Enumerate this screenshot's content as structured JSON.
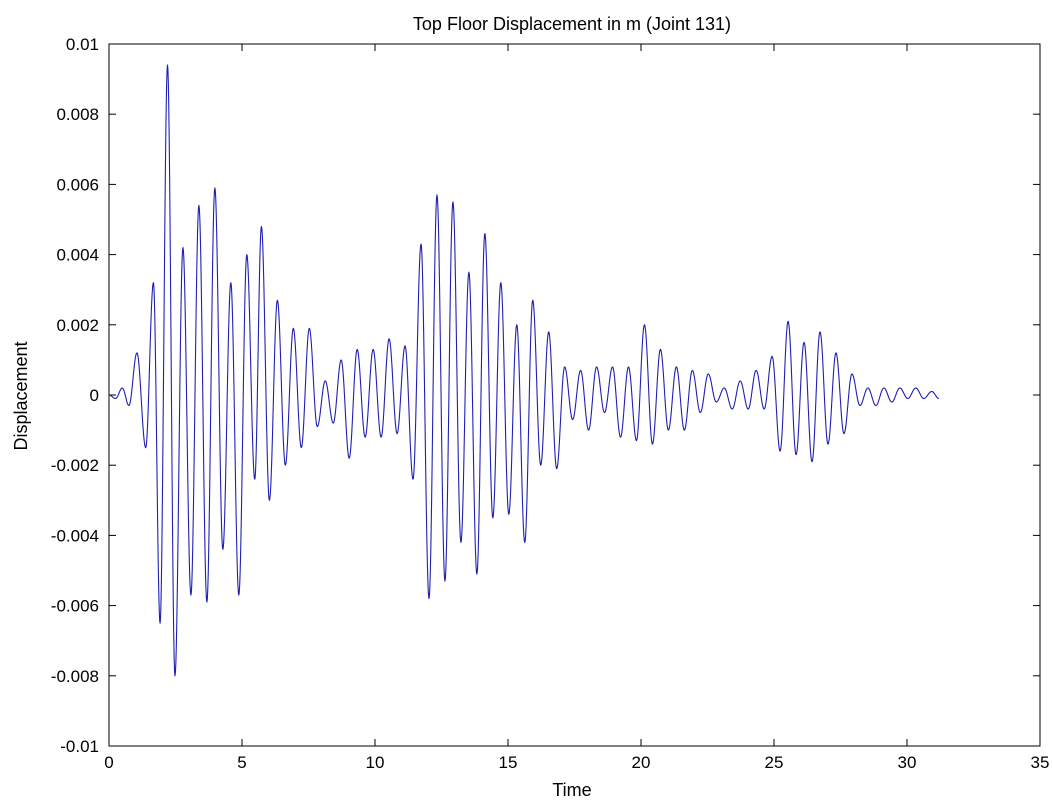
{
  "chart_data": {
    "type": "line",
    "title": "Top Floor Displacement in m (Joint 131)",
    "xlabel": "Time",
    "ylabel": "Displacement",
    "xlim": [
      0,
      35
    ],
    "ylim": [
      -0.01,
      0.01
    ],
    "x_ticks": [
      0,
      5,
      10,
      15,
      20,
      25,
      30,
      35
    ],
    "x_tick_labels": [
      "0",
      "5",
      "10",
      "15",
      "20",
      "25",
      "30",
      "35"
    ],
    "y_ticks": [
      -0.01,
      -0.008,
      -0.006,
      -0.004,
      -0.002,
      0,
      0.002,
      0.004,
      0.006,
      0.008,
      0.01
    ],
    "y_tick_labels": [
      "-0.01",
      "-0.008",
      "-0.006",
      "-0.004",
      "-0.002",
      "0",
      "0.002",
      "0.004",
      "0.006",
      "0.008",
      "0.01"
    ],
    "grid": false,
    "line_color": "#1f1fb4",
    "peaks": {
      "name": "",
      "x": [
        0.0,
        0.25,
        0.5,
        0.75,
        1.05,
        1.38,
        1.67,
        1.92,
        2.2,
        2.48,
        2.78,
        3.08,
        3.38,
        3.68,
        3.98,
        4.28,
        4.58,
        4.88,
        5.18,
        5.48,
        5.73,
        6.03,
        6.33,
        6.63,
        6.93,
        7.23,
        7.53,
        7.83,
        8.13,
        8.43,
        8.73,
        9.03,
        9.33,
        9.63,
        9.93,
        10.23,
        10.53,
        10.83,
        11.13,
        11.43,
        11.73,
        12.03,
        12.33,
        12.63,
        12.93,
        13.23,
        13.53,
        13.83,
        14.13,
        14.43,
        14.73,
        15.03,
        15.33,
        15.63,
        15.93,
        16.23,
        16.53,
        16.83,
        17.13,
        17.43,
        17.73,
        18.03,
        18.33,
        18.63,
        18.93,
        19.23,
        19.53,
        19.83,
        20.13,
        20.43,
        20.73,
        21.03,
        21.33,
        21.63,
        21.93,
        22.23,
        22.53,
        22.83,
        23.13,
        23.43,
        23.73,
        24.03,
        24.33,
        24.63,
        24.93,
        25.23,
        25.53,
        25.83,
        26.13,
        26.43,
        26.73,
        27.03,
        27.33,
        27.63,
        27.93,
        28.23,
        28.53,
        28.83,
        29.13,
        29.43,
        29.73,
        30.03,
        30.33,
        30.63,
        30.93,
        31.2
      ],
      "y": [
        0.0,
        -0.0001,
        0.0002,
        -0.0003,
        0.0012,
        -0.0015,
        0.0032,
        -0.0065,
        0.0094,
        -0.008,
        0.0042,
        -0.0057,
        0.0054,
        -0.0059,
        0.0059,
        -0.0044,
        0.0032,
        -0.0057,
        0.004,
        -0.0024,
        0.0048,
        -0.003,
        0.0027,
        -0.002,
        0.0019,
        -0.0015,
        0.0019,
        -0.0009,
        0.0004,
        -0.0008,
        0.001,
        -0.0018,
        0.0013,
        -0.0012,
        0.0013,
        -0.0012,
        0.0016,
        -0.0011,
        0.0014,
        -0.0024,
        0.0043,
        -0.0058,
        0.0057,
        -0.0053,
        0.0055,
        -0.0042,
        0.0035,
        -0.0051,
        0.0046,
        -0.0035,
        0.0032,
        -0.0034,
        0.002,
        -0.0042,
        0.0027,
        -0.002,
        0.0018,
        -0.0021,
        0.0008,
        -0.0007,
        0.0007,
        -0.001,
        0.0008,
        -0.0005,
        0.0008,
        -0.0012,
        0.0008,
        -0.0013,
        0.002,
        -0.0014,
        0.0013,
        -0.001,
        0.0008,
        -0.001,
        0.0007,
        -0.0005,
        0.0006,
        -0.0002,
        0.0002,
        -0.0004,
        0.0004,
        -0.0004,
        0.0007,
        -0.0004,
        0.0011,
        -0.0016,
        0.0021,
        -0.0017,
        0.0015,
        -0.0019,
        0.0018,
        -0.0014,
        0.0012,
        -0.0011,
        0.0006,
        -0.0003,
        0.0002,
        -0.0003,
        0.0002,
        -0.0002,
        0.0002,
        -0.0001,
        0.0002,
        -0.0001,
        0.0001,
        -0.0001
      ]
    }
  }
}
